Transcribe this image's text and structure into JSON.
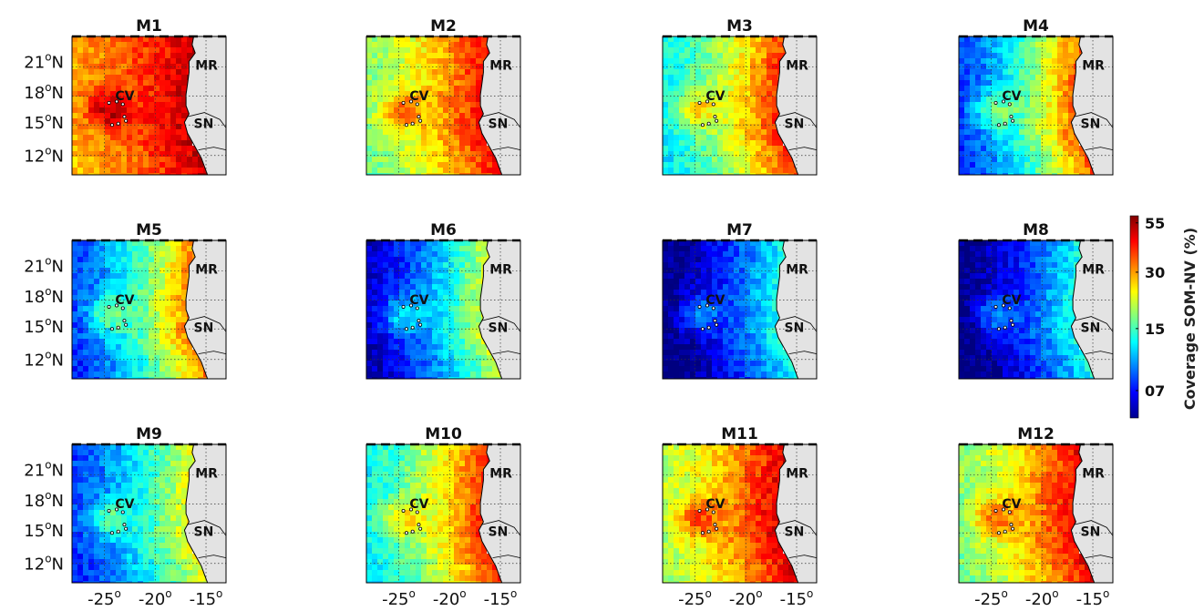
{
  "chart_data": {
    "type": "heatmap",
    "variable_label": "Coverage SOM-NV (%)",
    "colormap": "jet",
    "colorbar": {
      "ticks": [
        {
          "value": 55,
          "label": "55"
        },
        {
          "value": 30,
          "label": "30"
        },
        {
          "value": 15,
          "label": "15"
        },
        {
          "value": 7,
          "label": "07"
        }
      ]
    },
    "latitude_ticks": [
      "21°N",
      "18°N",
      "15°N",
      "12°N"
    ],
    "longitude_ticks": [
      "-25°",
      "-20°",
      "-15°"
    ],
    "place_labels": [
      "CV",
      "MR",
      "SN"
    ],
    "panels": [
      {
        "title": "M1",
        "offshore": 30,
        "coastal": 52
      },
      {
        "title": "M2",
        "offshore": 18,
        "coastal": 46
      },
      {
        "title": "M3",
        "offshore": 13,
        "coastal": 42
      },
      {
        "title": "M4",
        "offshore": 8,
        "coastal": 38
      },
      {
        "title": "M5",
        "offshore": 8,
        "coastal": 34
      },
      {
        "title": "M6",
        "offshore": 6,
        "coastal": 22
      },
      {
        "title": "M7",
        "offshore": 5,
        "coastal": 14
      },
      {
        "title": "M8",
        "offshore": 5,
        "coastal": 14
      },
      {
        "title": "M9",
        "offshore": 8,
        "coastal": 24
      },
      {
        "title": "M10",
        "offshore": 13,
        "coastal": 42
      },
      {
        "title": "M11",
        "offshore": 20,
        "coastal": 50
      },
      {
        "title": "M12",
        "offshore": 18,
        "coastal": 48
      }
    ]
  }
}
